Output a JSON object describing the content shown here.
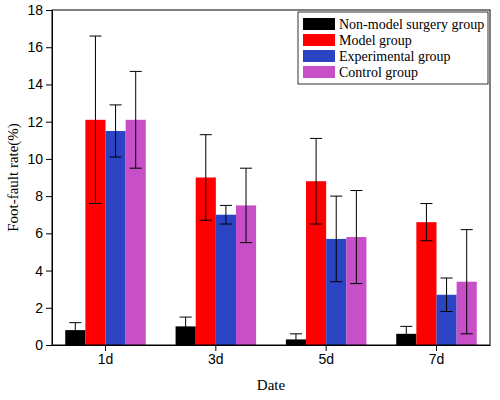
{
  "chart_data": {
    "type": "bar",
    "x_label": "Date",
    "y_label": "Foot-fault rate(%)",
    "categories": [
      "1d",
      "3d",
      "5d",
      "7d"
    ],
    "series": [
      {
        "name": "Non-model surgery group",
        "color": "#000000",
        "values": [
          0.8,
          1.0,
          0.3,
          0.6
        ],
        "errors": [
          0.4,
          0.5,
          0.3,
          0.4
        ]
      },
      {
        "name": "Model group",
        "color": "#ff0000",
        "values": [
          12.1,
          9.0,
          8.8,
          6.6
        ],
        "errors": [
          4.5,
          2.3,
          2.3,
          1.0
        ]
      },
      {
        "name": "Experimental group",
        "color": "#2a44c4",
        "values": [
          11.5,
          7.0,
          5.7,
          2.7
        ],
        "errors": [
          1.4,
          0.5,
          2.3,
          0.9
        ]
      },
      {
        "name": "Control group",
        "color": "#c74fc7",
        "values": [
          12.1,
          7.5,
          5.8,
          3.4
        ],
        "errors": [
          2.6,
          2.0,
          2.5,
          2.8
        ]
      }
    ],
    "ylim": [
      0,
      18
    ],
    "yticks": [
      0,
      2,
      4,
      6,
      8,
      10,
      12,
      14,
      16,
      18
    ],
    "grid": false,
    "legend": "upper right"
  }
}
